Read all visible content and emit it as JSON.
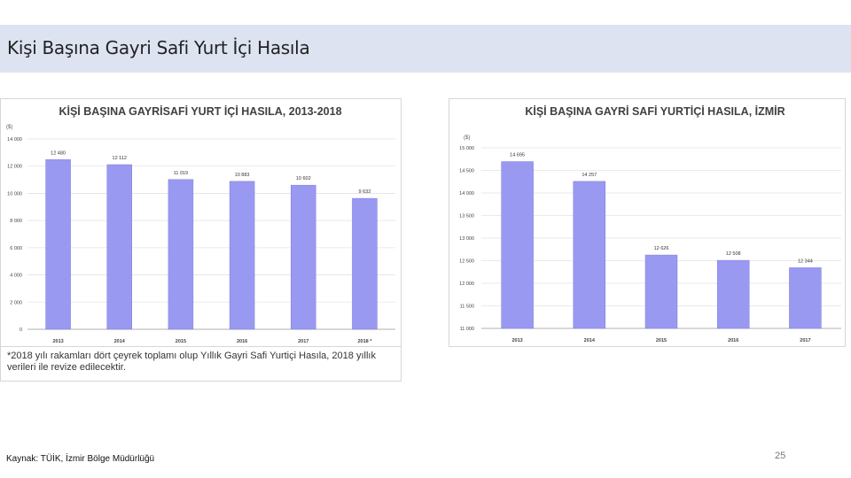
{
  "slide": {
    "title": "Kişi Başına Gayri Safi Yurt İçi Hasıla",
    "footnote": "*2018 yılı rakamları dört çeyrek toplamı olup Yıllık Gayri Safi Yurtiçi Hasıla, 2018 yıllık verileri ile revize edilecektir.",
    "source": "Kaynak: TÜİK, İzmir Bölge Müdürlüğü",
    "page_number": "25"
  },
  "colors": {
    "bar": "#9999f2",
    "bar_edge": "#7f7fe0",
    "grid": "#e3e3e3",
    "title_band": "#dde3f1"
  },
  "chart_data": [
    {
      "type": "bar",
      "title": "KİŞİ BAŞINA GAYRİSAFİ YURT İÇİ HASILA, 2013-2018",
      "ylabel": "($)",
      "categories": [
        "2013",
        "2014",
        "2015",
        "2016",
        "2017",
        "2018 *"
      ],
      "values": [
        12480,
        12112,
        11019,
        10883,
        10602,
        9632
      ],
      "value_labels": [
        "12 480",
        "12 112",
        "11 019",
        "10 883",
        "10 602",
        "9 632"
      ],
      "ylim": [
        0,
        14000
      ],
      "yticks": [
        0,
        2000,
        4000,
        6000,
        8000,
        10000,
        12000,
        14000
      ],
      "ytick_labels": [
        "0",
        "2 000",
        "4 000",
        "6 000",
        "8 000",
        "10 000",
        "12 000",
        "14 000"
      ],
      "grid": true
    },
    {
      "type": "bar",
      "title": "KİŞİ BAŞINA GAYRİ SAFİ YURTİÇİ HASILA, İZMİR",
      "ylabel": "($)",
      "categories": [
        "2013",
        "2014",
        "2015",
        "2016",
        "2017"
      ],
      "values": [
        14695,
        14257,
        12626,
        12508,
        12344
      ],
      "value_labels": [
        "14 695",
        "14 257",
        "12 626",
        "12 508",
        "12 344"
      ],
      "ylim": [
        11000,
        15000
      ],
      "yticks": [
        11000,
        11500,
        12000,
        12500,
        13000,
        13500,
        14000,
        14500,
        15000
      ],
      "ytick_labels": [
        "11 000",
        "11 500",
        "12 000",
        "12 500",
        "13 000",
        "13 500",
        "14 000",
        "14 500",
        "15 000"
      ],
      "grid": true
    }
  ]
}
